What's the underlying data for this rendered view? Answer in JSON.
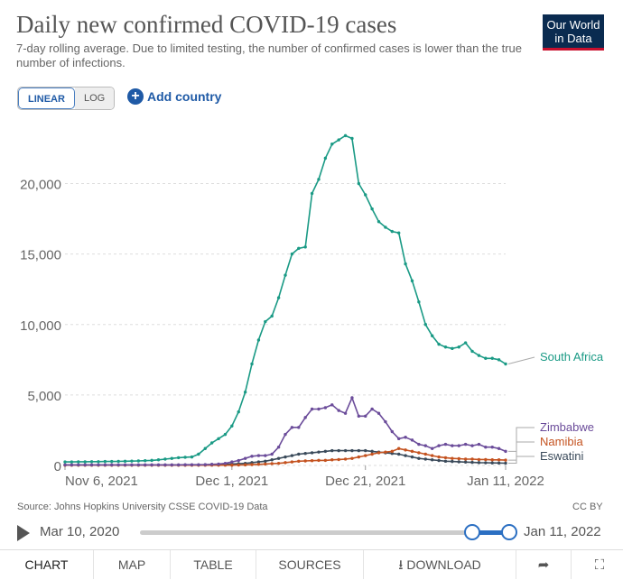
{
  "header": {
    "title": "Daily new confirmed COVID-19 cases",
    "subtitle": "7-day rolling average. Due to limited testing, the number of confirmed cases is lower than the true number of infections.",
    "logo_line1": "Our World",
    "logo_line2": "in Data"
  },
  "controls": {
    "linear": "LINEAR",
    "log": "LOG",
    "add_country": "Add country"
  },
  "chart_data": {
    "type": "line",
    "xlabel": "",
    "ylabel": "",
    "ylim": [
      0,
      24000
    ],
    "y_ticks": [
      "0",
      "5,000",
      "10,000",
      "15,000",
      "20,000"
    ],
    "y_tick_values": [
      0,
      5000,
      10000,
      15000,
      20000
    ],
    "x_ticks": [
      "Nov 6, 2021",
      "Dec 1, 2021",
      "Dec 21, 2021",
      "Jan 11, 2022"
    ],
    "x_tick_days": [
      0,
      25,
      45,
      66
    ],
    "x_range_days": [
      0,
      66
    ],
    "grid": true,
    "series": [
      {
        "name": "South Africa",
        "color": "#1a9a85",
        "values": [
          250,
          250,
          260,
          260,
          270,
          270,
          280,
          280,
          290,
          300,
          310,
          320,
          340,
          360,
          400,
          450,
          500,
          550,
          580,
          600,
          800,
          1200,
          1600,
          1900,
          2200,
          2800,
          3800,
          5200,
          7200,
          8900,
          10200,
          10600,
          11900,
          13500,
          15000,
          15400,
          15500,
          19300,
          20300,
          21800,
          22800,
          23100,
          23400,
          23200,
          20000,
          19200,
          18200,
          17300,
          16900,
          16600,
          16500,
          14300,
          13100,
          11600,
          10000,
          9200,
          8600,
          8400,
          8300,
          8400,
          8700,
          8100,
          7800,
          7600,
          7600,
          7500,
          7200
        ]
      },
      {
        "name": "Zimbabwe",
        "color": "#6b4c9a",
        "values": [
          40,
          40,
          40,
          40,
          40,
          40,
          40,
          40,
          40,
          40,
          40,
          40,
          40,
          40,
          40,
          40,
          40,
          40,
          50,
          50,
          50,
          60,
          80,
          100,
          150,
          250,
          350,
          500,
          650,
          700,
          700,
          800,
          1300,
          2200,
          2700,
          2700,
          3400,
          4000,
          4000,
          4100,
          4300,
          3900,
          3700,
          4800,
          3500,
          3500,
          4000,
          3700,
          3100,
          2400,
          1900,
          2000,
          1800,
          1500,
          1400,
          1200,
          1400,
          1500,
          1400,
          1400,
          1500,
          1400,
          1500,
          1300,
          1300,
          1200,
          1000
        ]
      },
      {
        "name": "Namibia",
        "color": "#c4521f",
        "values": [
          20,
          20,
          20,
          20,
          20,
          20,
          20,
          20,
          20,
          20,
          20,
          20,
          20,
          20,
          20,
          20,
          20,
          20,
          20,
          20,
          20,
          20,
          20,
          20,
          20,
          20,
          30,
          40,
          60,
          80,
          100,
          130,
          150,
          200,
          250,
          300,
          320,
          340,
          360,
          360,
          400,
          420,
          450,
          500,
          600,
          700,
          800,
          900,
          950,
          1000,
          1200,
          1100,
          1000,
          900,
          800,
          700,
          600,
          550,
          500,
          480,
          450,
          450,
          420,
          420,
          400,
          400,
          380
        ]
      },
      {
        "name": "Eswatini",
        "color": "#3a4a5a",
        "values": [
          30,
          30,
          30,
          30,
          30,
          30,
          30,
          30,
          30,
          30,
          30,
          30,
          30,
          30,
          30,
          30,
          30,
          30,
          30,
          30,
          30,
          40,
          50,
          60,
          80,
          100,
          120,
          150,
          200,
          250,
          300,
          400,
          500,
          600,
          700,
          800,
          850,
          900,
          950,
          1000,
          1050,
          1050,
          1050,
          1050,
          1050,
          1050,
          1000,
          950,
          900,
          850,
          800,
          700,
          600,
          500,
          450,
          400,
          350,
          300,
          280,
          260,
          240,
          220,
          200,
          190,
          180,
          170,
          160
        ]
      }
    ]
  },
  "footer": {
    "source": "Source: Johns Hopkins University CSSE COVID-19 Data",
    "license": "CC BY"
  },
  "timeline": {
    "start": "Mar 10, 2020",
    "end": "Jan 11, 2022"
  },
  "tabs": [
    {
      "label": "CHART"
    },
    {
      "label": "MAP"
    },
    {
      "label": "TABLE"
    },
    {
      "label": "SOURCES"
    },
    {
      "label": "DOWNLOAD"
    }
  ]
}
